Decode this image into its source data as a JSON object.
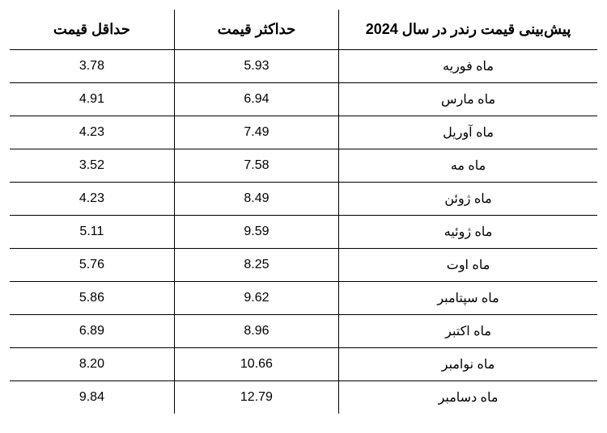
{
  "table": {
    "columns": {
      "month": "پیش‌بینی قیمت رندر در سال 2024",
      "max": "حداکثر قیمت",
      "min": "حداقل قیمت"
    },
    "rows": [
      {
        "month": "ماه فوریه",
        "max": "5.93",
        "min": "3.78"
      },
      {
        "month": "ماه مارس",
        "max": "6.94",
        "min": "4.91"
      },
      {
        "month": "ماه آوریل",
        "max": "7.49",
        "min": "4.23"
      },
      {
        "month": "ماه مه",
        "max": "7.58",
        "min": "3.52"
      },
      {
        "month": "ماه ژوئن",
        "max": "8.49",
        "min": "4.23"
      },
      {
        "month": "ماه ژوئیه",
        "max": "9.59",
        "min": "5.11"
      },
      {
        "month": "ماه اوت",
        "max": "8.25",
        "min": "5.76"
      },
      {
        "month": "ماه سپتامبر",
        "max": "9.62",
        "min": "5.86"
      },
      {
        "month": "ماه اکتبر",
        "max": "8.96",
        "min": "6.89"
      },
      {
        "month": "ماه نوامبر",
        "max": "10.66",
        "min": "8.20"
      },
      {
        "month": "ماه دسامبر",
        "max": "12.79",
        "min": "9.84"
      }
    ],
    "styling": {
      "border_color": "#000000",
      "background_color": "#ffffff",
      "header_fontsize": 18,
      "cell_fontsize": 16,
      "font_family": "Tahoma",
      "text_color": "#000000",
      "direction": "rtl",
      "column_widths": {
        "month": "44%",
        "max": "28%",
        "min": "28%"
      }
    }
  }
}
